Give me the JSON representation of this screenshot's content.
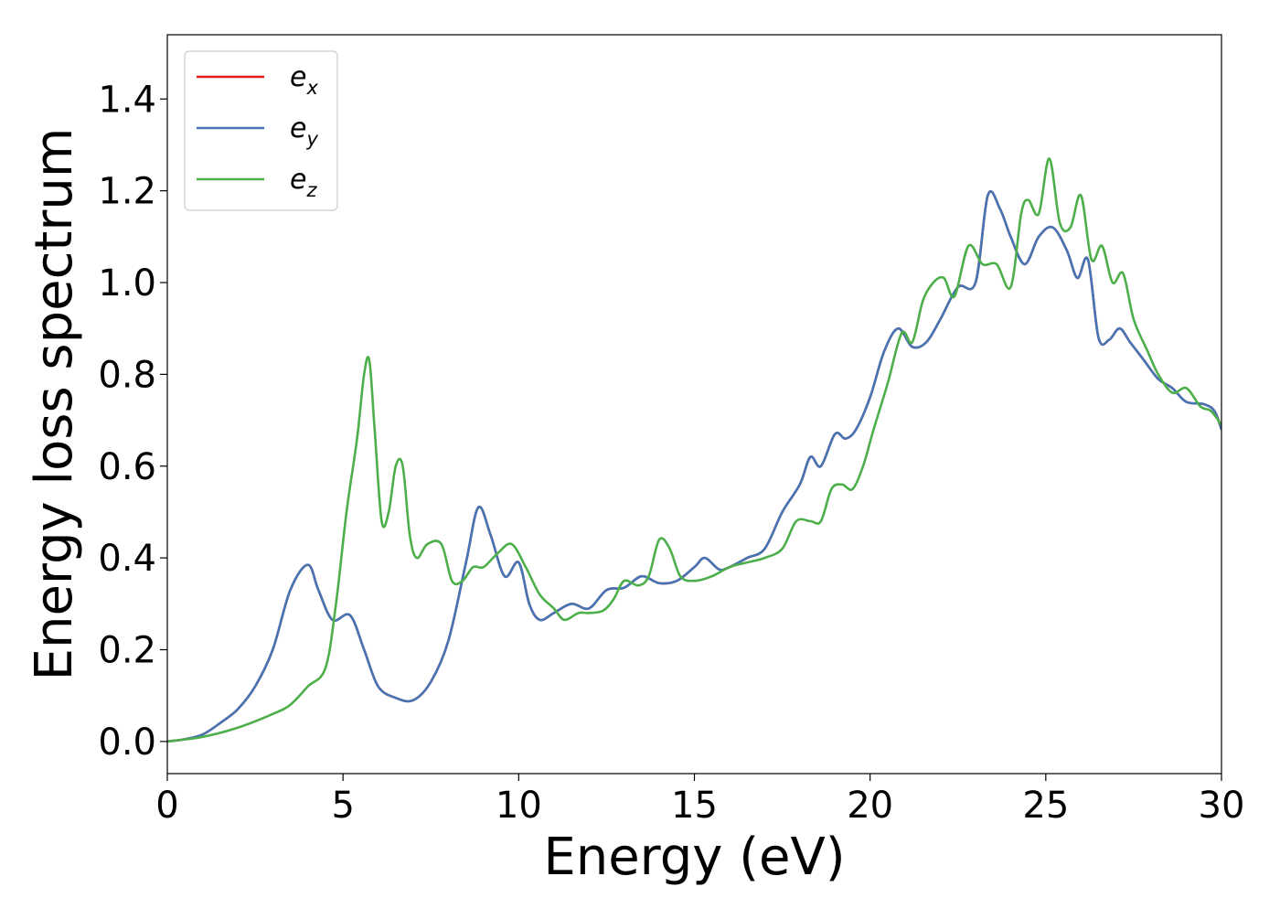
{
  "chart_data": {
    "type": "line",
    "title": "",
    "xlabel": "Energy (eV)",
    "ylabel": "Energy loss spectrum",
    "xlim": [
      0,
      30
    ],
    "ylim": [
      -0.07,
      1.54
    ],
    "xticks": [
      0,
      5,
      10,
      15,
      20,
      25,
      30
    ],
    "xtick_labels": [
      "0",
      "5",
      "10",
      "15",
      "20",
      "25",
      "30"
    ],
    "yticks": [
      0.0,
      0.2,
      0.4,
      0.6,
      0.8,
      1.0,
      1.2,
      1.4
    ],
    "ytick_labels": [
      "0.0",
      "0.2",
      "0.4",
      "0.6",
      "0.8",
      "1.0",
      "1.2",
      "1.4"
    ],
    "grid": false,
    "legend_position": "top-left",
    "series": [
      {
        "name": "e_x",
        "label_main": "e",
        "label_sub": "x",
        "color": "#e41a1c",
        "x": [
          0,
          0.5,
          1.0,
          1.5,
          2.0,
          2.5,
          3.0,
          3.5,
          4.0,
          4.3,
          4.7,
          5.2,
          5.6,
          6.0,
          6.5,
          7.0,
          7.5,
          8.0,
          8.5,
          8.85,
          9.2,
          9.6,
          10.0,
          10.3,
          10.6,
          11.0,
          11.5,
          12.0,
          12.5,
          13.0,
          13.5,
          14.0,
          14.5,
          15.0,
          15.3,
          15.7,
          16.0,
          16.5,
          17.0,
          17.5,
          18.0,
          18.3,
          18.6,
          19.0,
          19.3,
          19.6,
          20.0,
          20.4,
          20.8,
          21.2,
          21.6,
          22.0,
          22.5,
          23.0,
          23.35,
          23.7,
          24.0,
          24.4,
          24.8,
          25.2,
          25.6,
          25.9,
          26.2,
          26.5,
          26.8,
          27.1,
          27.4,
          27.8,
          28.2,
          28.6,
          29.0,
          29.5,
          29.8,
          30.0
        ],
        "y": [
          0.0,
          0.005,
          0.015,
          0.04,
          0.07,
          0.12,
          0.2,
          0.33,
          0.385,
          0.33,
          0.265,
          0.275,
          0.2,
          0.12,
          0.095,
          0.09,
          0.13,
          0.22,
          0.39,
          0.51,
          0.45,
          0.36,
          0.39,
          0.3,
          0.265,
          0.28,
          0.3,
          0.29,
          0.33,
          0.335,
          0.36,
          0.345,
          0.35,
          0.38,
          0.4,
          0.375,
          0.38,
          0.4,
          0.42,
          0.5,
          0.56,
          0.62,
          0.6,
          0.67,
          0.66,
          0.68,
          0.75,
          0.85,
          0.9,
          0.86,
          0.87,
          0.92,
          0.99,
          1.0,
          1.19,
          1.16,
          1.1,
          1.04,
          1.1,
          1.12,
          1.07,
          1.01,
          1.05,
          0.88,
          0.875,
          0.9,
          0.87,
          0.83,
          0.79,
          0.77,
          0.74,
          0.735,
          0.72,
          0.68
        ]
      },
      {
        "name": "e_y",
        "label_main": "e",
        "label_sub": "y",
        "color": "#4575b4",
        "x": [
          0,
          0.5,
          1.0,
          1.5,
          2.0,
          2.5,
          3.0,
          3.5,
          4.0,
          4.3,
          4.7,
          5.2,
          5.6,
          6.0,
          6.5,
          7.0,
          7.5,
          8.0,
          8.5,
          8.85,
          9.2,
          9.6,
          10.0,
          10.3,
          10.6,
          11.0,
          11.5,
          12.0,
          12.5,
          13.0,
          13.5,
          14.0,
          14.5,
          15.0,
          15.3,
          15.7,
          16.0,
          16.5,
          17.0,
          17.5,
          18.0,
          18.3,
          18.6,
          19.0,
          19.3,
          19.6,
          20.0,
          20.4,
          20.8,
          21.2,
          21.6,
          22.0,
          22.5,
          23.0,
          23.35,
          23.7,
          24.0,
          24.4,
          24.8,
          25.2,
          25.6,
          25.9,
          26.2,
          26.5,
          26.8,
          27.1,
          27.4,
          27.8,
          28.2,
          28.6,
          29.0,
          29.5,
          29.8,
          30.0
        ],
        "y": [
          0.0,
          0.005,
          0.015,
          0.04,
          0.07,
          0.12,
          0.2,
          0.33,
          0.385,
          0.33,
          0.265,
          0.275,
          0.2,
          0.12,
          0.095,
          0.09,
          0.13,
          0.22,
          0.39,
          0.51,
          0.45,
          0.36,
          0.39,
          0.3,
          0.265,
          0.28,
          0.3,
          0.29,
          0.33,
          0.335,
          0.36,
          0.345,
          0.35,
          0.38,
          0.4,
          0.375,
          0.38,
          0.4,
          0.42,
          0.5,
          0.56,
          0.62,
          0.6,
          0.67,
          0.66,
          0.68,
          0.75,
          0.85,
          0.9,
          0.86,
          0.87,
          0.92,
          0.99,
          1.0,
          1.19,
          1.16,
          1.1,
          1.04,
          1.1,
          1.12,
          1.07,
          1.01,
          1.05,
          0.88,
          0.875,
          0.9,
          0.87,
          0.83,
          0.79,
          0.77,
          0.74,
          0.735,
          0.72,
          0.68
        ]
      },
      {
        "name": "e_z",
        "label_main": "e",
        "label_sub": "z",
        "color": "#4daf4a",
        "x": [
          0,
          1.0,
          2.0,
          3.0,
          3.5,
          4.0,
          4.5,
          4.8,
          5.1,
          5.4,
          5.6,
          5.75,
          5.9,
          6.1,
          6.3,
          6.5,
          6.7,
          6.9,
          7.1,
          7.4,
          7.8,
          8.1,
          8.4,
          8.7,
          9.0,
          9.4,
          9.8,
          10.2,
          10.6,
          11.0,
          11.3,
          11.7,
          12.0,
          12.4,
          12.7,
          13.0,
          13.4,
          13.7,
          14.0,
          14.3,
          14.6,
          15.0,
          15.5,
          16.0,
          16.5,
          17.0,
          17.5,
          17.9,
          18.3,
          18.6,
          18.9,
          19.2,
          19.5,
          19.8,
          20.1,
          20.5,
          20.9,
          21.2,
          21.5,
          21.8,
          22.1,
          22.4,
          22.8,
          23.2,
          23.6,
          24.0,
          24.3,
          24.5,
          24.8,
          25.1,
          25.4,
          25.7,
          26.0,
          26.3,
          26.6,
          26.9,
          27.2,
          27.5,
          27.9,
          28.2,
          28.6,
          29.0,
          29.4,
          29.7,
          30.0
        ],
        "y": [
          0.0,
          0.01,
          0.03,
          0.06,
          0.08,
          0.12,
          0.16,
          0.3,
          0.5,
          0.66,
          0.8,
          0.83,
          0.68,
          0.48,
          0.5,
          0.6,
          0.6,
          0.45,
          0.4,
          0.43,
          0.43,
          0.35,
          0.35,
          0.38,
          0.38,
          0.41,
          0.43,
          0.38,
          0.32,
          0.29,
          0.265,
          0.28,
          0.28,
          0.285,
          0.31,
          0.35,
          0.34,
          0.36,
          0.44,
          0.42,
          0.36,
          0.35,
          0.36,
          0.38,
          0.39,
          0.4,
          0.42,
          0.48,
          0.48,
          0.48,
          0.55,
          0.56,
          0.55,
          0.6,
          0.68,
          0.78,
          0.89,
          0.87,
          0.96,
          1.0,
          1.01,
          0.97,
          1.08,
          1.04,
          1.04,
          0.99,
          1.15,
          1.18,
          1.15,
          1.27,
          1.13,
          1.12,
          1.19,
          1.05,
          1.08,
          1.0,
          1.02,
          0.92,
          0.85,
          0.8,
          0.76,
          0.77,
          0.73,
          0.72,
          0.69
        ]
      }
    ]
  }
}
